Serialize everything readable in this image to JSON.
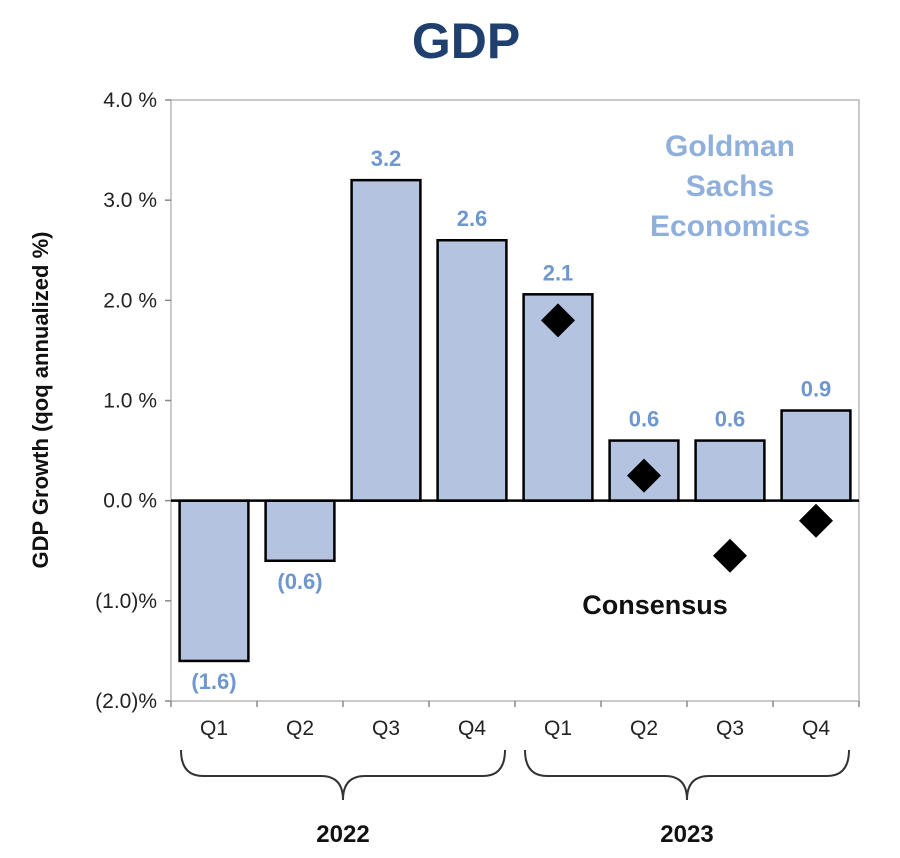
{
  "chart_data": {
    "type": "bar",
    "title": "GDP",
    "ylabel": "GDP Growth (qoq annualized %)",
    "xlabel": "",
    "ylim": [
      -2.0,
      4.0
    ],
    "yticks": [
      4.0,
      3.0,
      2.0,
      1.0,
      0.0,
      -1.0,
      -2.0
    ],
    "ytick_labels": [
      "4.0 %",
      "3.0 %",
      "2.0 %",
      "1.0 %",
      "0.0 %",
      "(1.0)%",
      "(2.0)%"
    ],
    "categories": [
      "Q1",
      "Q2",
      "Q3",
      "Q4",
      "Q1",
      "Q2",
      "Q3",
      "Q4"
    ],
    "groups": [
      {
        "label": "2022",
        "from": 0,
        "to": 3
      },
      {
        "label": "2023",
        "from": 4,
        "to": 7
      }
    ],
    "series": [
      {
        "type": "bar",
        "values": [
          -1.6,
          -0.6,
          3.2,
          2.6,
          2.06,
          0.6,
          0.6,
          0.9
        ],
        "labels": [
          "(1.6)",
          "(0.6)",
          "3.2",
          "2.6",
          "2.1",
          "0.6",
          "0.6",
          "0.9"
        ],
        "color": "#b3c3e0"
      },
      {
        "name": "Consensus",
        "type": "marker",
        "marker": "diamond",
        "values": [
          null,
          null,
          null,
          null,
          1.8,
          0.25,
          -0.55,
          -0.2
        ],
        "color": "#000000"
      }
    ],
    "annotations": [
      "Goldman",
      "Sachs",
      "Economics"
    ],
    "grid": false
  }
}
